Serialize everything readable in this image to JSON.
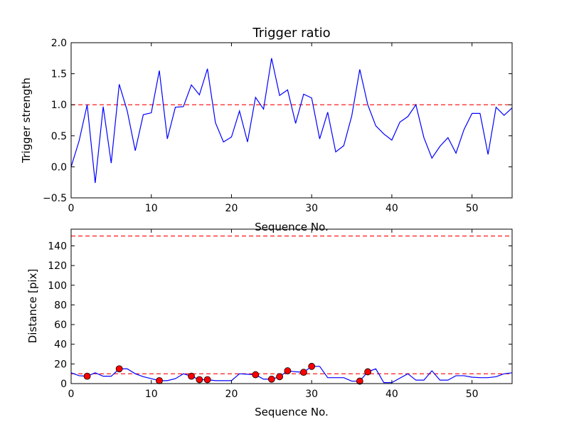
{
  "chart_data": [
    {
      "type": "line",
      "title": "Trigger ratio",
      "xlabel": "Sequence No.",
      "ylabel": "Trigger strength",
      "xlim": [
        0,
        55
      ],
      "ylim": [
        -0.5,
        2.0
      ],
      "xticks": [
        0,
        10,
        20,
        30,
        40,
        50
      ],
      "yticks": [
        -0.5,
        0.0,
        0.5,
        1.0,
        1.5,
        2.0
      ],
      "ytick_labels": [
        "−0.5",
        "0.0",
        "0.5",
        "1.0",
        "1.5",
        "2.0"
      ],
      "series": [
        {
          "name": "trigger strength",
          "color": "#0000ff",
          "x": [
            0,
            1,
            2,
            3,
            4,
            5,
            6,
            7,
            8,
            9,
            10,
            11,
            12,
            13,
            14,
            15,
            16,
            17,
            18,
            19,
            20,
            21,
            22,
            23,
            24,
            25,
            26,
            27,
            28,
            29,
            30,
            31,
            32,
            33,
            34,
            35,
            36,
            37,
            38,
            39,
            40,
            41,
            42,
            43,
            44,
            45,
            46,
            47,
            48,
            49,
            50,
            51,
            52,
            53,
            54,
            55
          ],
          "values": [
            0.0,
            0.42,
            1.0,
            -0.26,
            0.97,
            0.06,
            1.33,
            0.9,
            0.26,
            0.84,
            0.87,
            1.55,
            0.45,
            0.96,
            0.97,
            1.32,
            1.16,
            1.58,
            0.71,
            0.4,
            0.48,
            0.9,
            0.4,
            1.12,
            0.93,
            1.75,
            1.15,
            1.24,
            0.7,
            1.17,
            1.11,
            0.45,
            0.88,
            0.24,
            0.34,
            0.82,
            1.57,
            1.0,
            0.66,
            0.53,
            0.43,
            0.72,
            0.81,
            1.0,
            0.47,
            0.14,
            0.33,
            0.47,
            0.22,
            0.6,
            0.86,
            0.86,
            0.2,
            0.96,
            0.83,
            0.95
          ]
        }
      ],
      "threshold": {
        "value": 1.0,
        "color": "#ff0000",
        "style": "dashed"
      }
    },
    {
      "type": "line",
      "title": "",
      "xlabel": "Sequence No.",
      "ylabel": "Distance [pix]",
      "xlim": [
        0,
        55
      ],
      "ylim": [
        0,
        157
      ],
      "xticks": [
        0,
        10,
        20,
        30,
        40,
        50
      ],
      "yticks": [
        0,
        20,
        40,
        60,
        80,
        100,
        120,
        140
      ],
      "ytick_labels": [
        "0",
        "20",
        "40",
        "60",
        "80",
        "100",
        "120",
        "140"
      ],
      "series": [
        {
          "name": "distance",
          "color": "#0000ff",
          "x": [
            0,
            1,
            2,
            3,
            4,
            5,
            6,
            7,
            8,
            9,
            10,
            11,
            12,
            13,
            14,
            15,
            16,
            17,
            18,
            19,
            20,
            21,
            22,
            23,
            24,
            25,
            26,
            27,
            28,
            29,
            30,
            31,
            32,
            33,
            34,
            35,
            36,
            37,
            38,
            39,
            40,
            41,
            42,
            43,
            44,
            45,
            46,
            47,
            48,
            49,
            50,
            51,
            52,
            53,
            54,
            55
          ],
          "values": [
            11,
            8,
            7.5,
            11,
            7.5,
            7.5,
            15,
            15,
            10,
            7,
            5,
            3,
            3,
            5,
            10,
            7.5,
            4,
            4,
            3,
            3,
            3,
            10,
            9.5,
            9,
            4.5,
            4.5,
            7,
            13,
            12,
            11.5,
            17.5,
            17.5,
            6,
            6,
            6,
            2.5,
            2.5,
            12,
            15,
            1,
            1,
            5.5,
            10,
            3.5,
            3.5,
            13,
            3.5,
            3.5,
            8,
            8,
            6.5,
            6,
            6,
            7,
            10,
            11
          ]
        },
        {
          "name": "triggered points",
          "color": "#ff0000",
          "marker": "circle",
          "x": [
            2,
            6,
            11,
            15,
            16,
            17,
            23,
            25,
            26,
            27,
            29,
            30,
            36,
            37
          ],
          "values": [
            7.5,
            15,
            3,
            7.5,
            4,
            4,
            9,
            4.5,
            7,
            13,
            11.5,
            17.5,
            2.5,
            12
          ]
        }
      ],
      "thresholds": [
        {
          "value": 10,
          "color": "#ff0000",
          "style": "dashed"
        },
        {
          "value": 150,
          "color": "#ff0000",
          "style": "dashed"
        }
      ]
    }
  ]
}
